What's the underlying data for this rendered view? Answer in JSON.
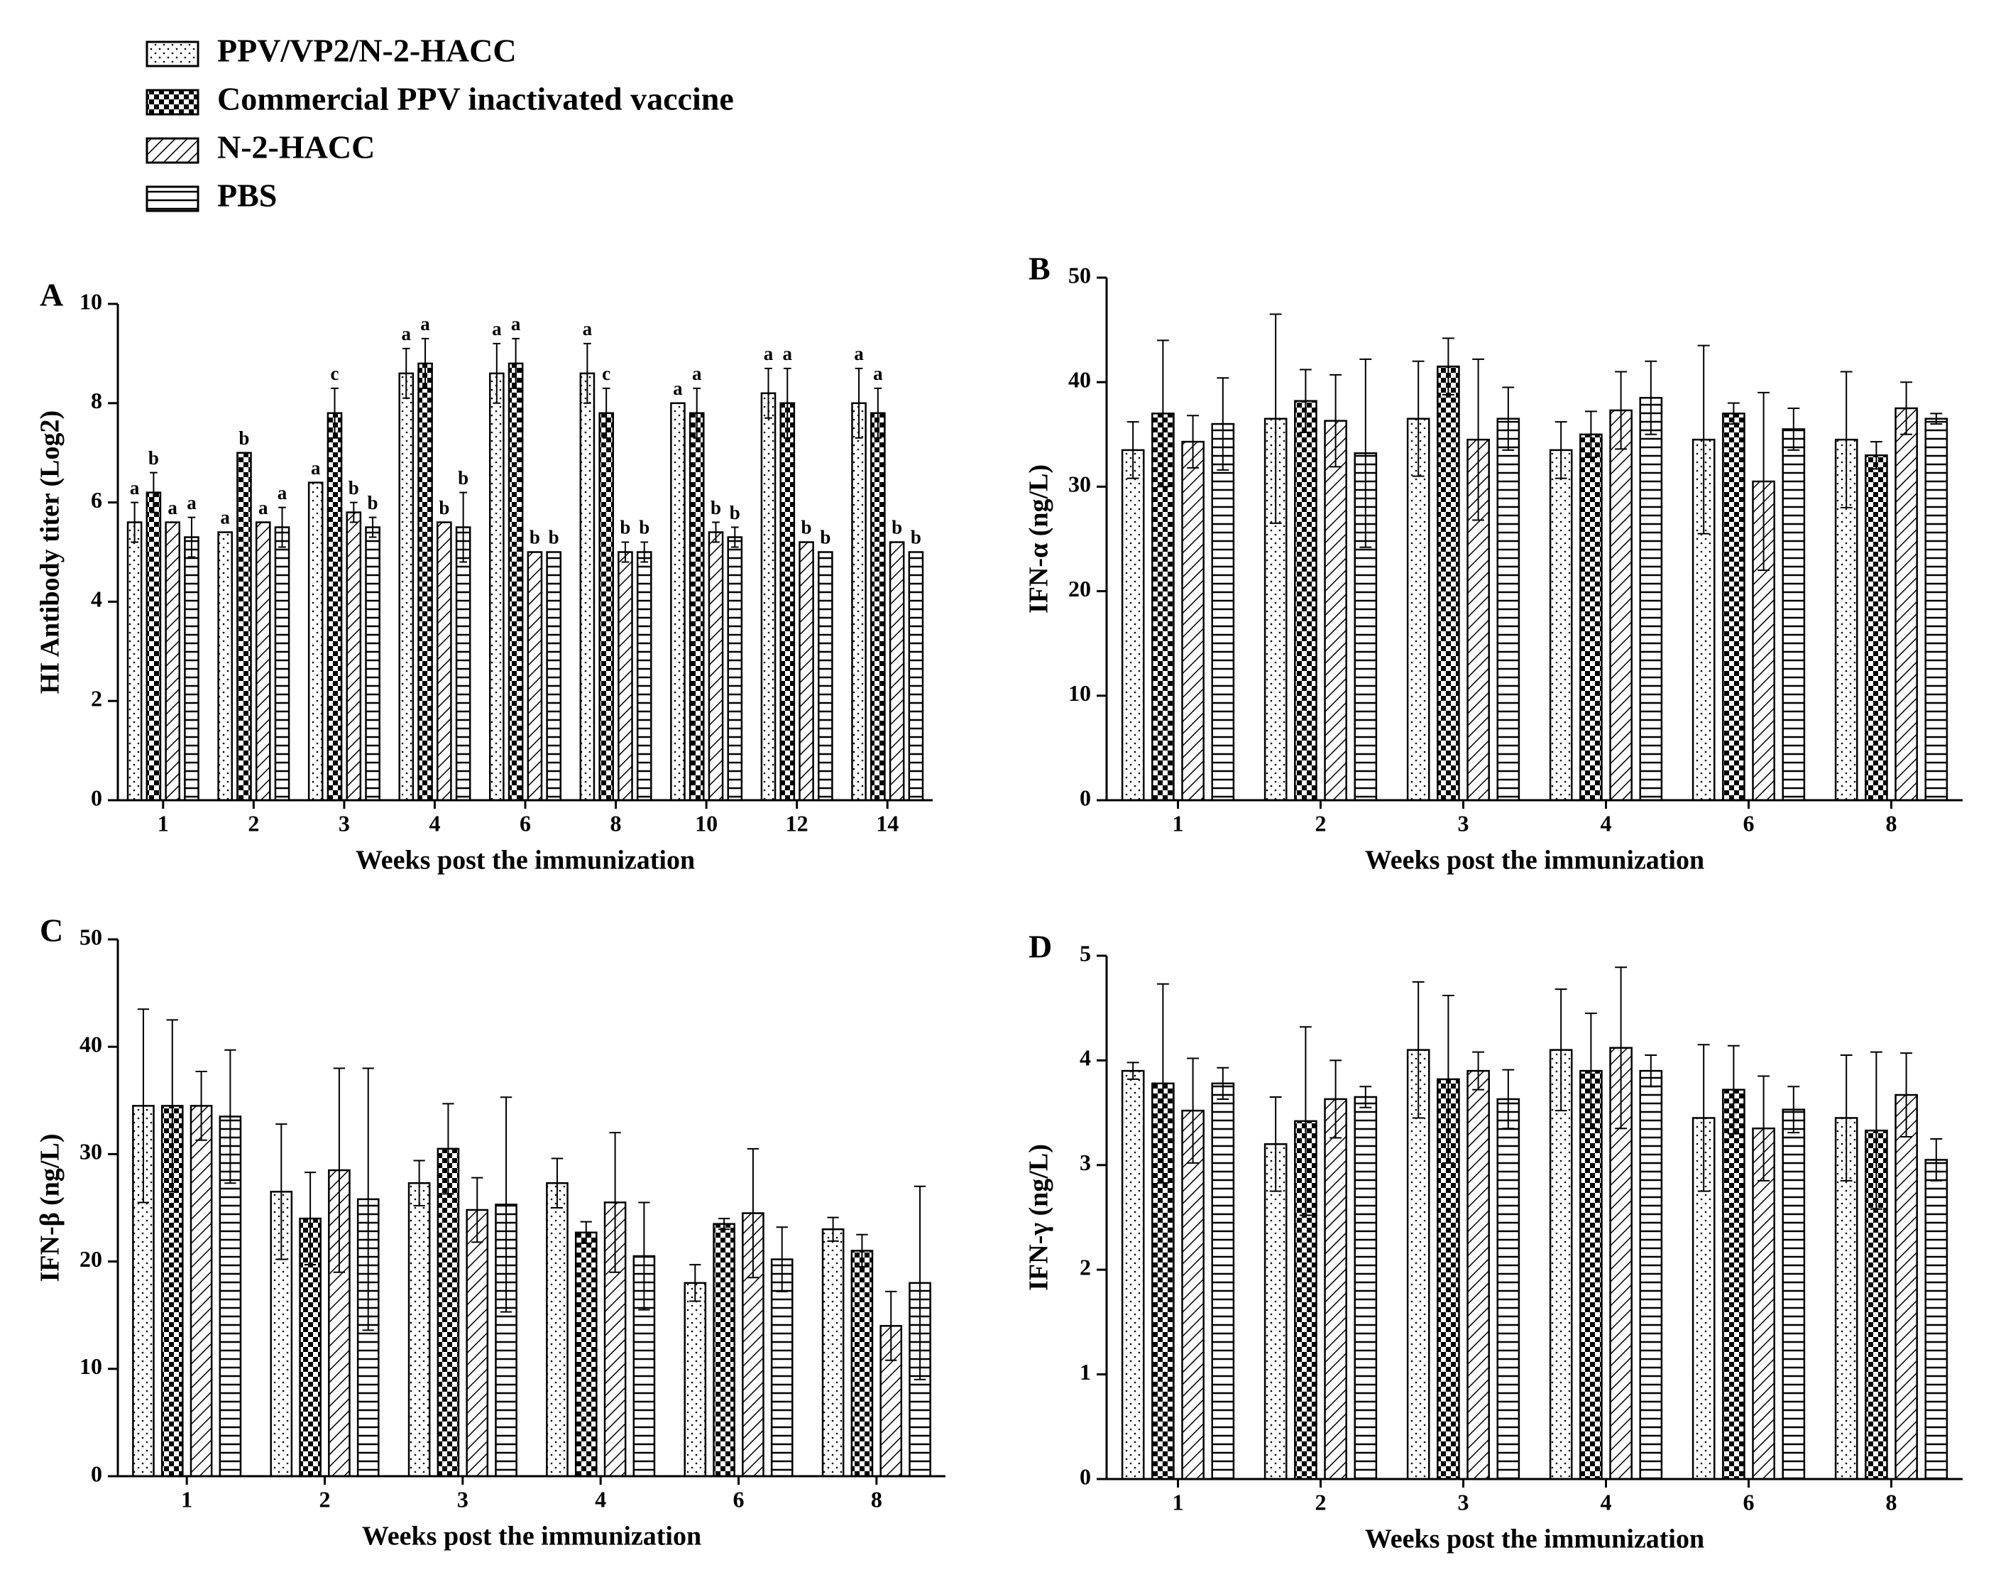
{
  "chart_data": [
    {
      "type": "bar",
      "label": "A",
      "xlabel": "Weeks post the immunization",
      "ylabel": "HI Antibody titer (Log2)",
      "categories": [
        "1",
        "2",
        "3",
        "4",
        "6",
        "8",
        "10",
        "12",
        "14"
      ],
      "ylim": [
        0,
        10
      ],
      "yticks": [
        0,
        2,
        4,
        6,
        8,
        10
      ],
      "series": [
        {
          "name": "PPV/VP2/N-2-HACC",
          "pattern": "dots",
          "color": "#000000",
          "values": [
            5.6,
            5.4,
            6.4,
            8.6,
            8.6,
            8.6,
            8.0,
            8.2,
            8.0
          ],
          "errors": [
            0.4,
            null,
            null,
            0.5,
            0.6,
            0.6,
            null,
            0.5,
            0.7
          ],
          "annotations": [
            "a",
            "a",
            "a",
            "a",
            "a",
            "a",
            "a",
            "a",
            "a"
          ]
        },
        {
          "name": "Commercial PPV inactivated vaccine",
          "pattern": "checker",
          "color": "#000000",
          "values": [
            6.2,
            7.0,
            7.8,
            8.8,
            8.8,
            7.8,
            7.8,
            8.0,
            7.8
          ],
          "errors": [
            0.4,
            null,
            0.5,
            0.5,
            0.5,
            0.5,
            0.5,
            0.7,
            0.5
          ],
          "annotations": [
            "b",
            "b",
            "c",
            "a",
            "a",
            "c",
            "a",
            "a",
            "a"
          ]
        },
        {
          "name": "N-2-HACC",
          "pattern": "diagonal",
          "color": "#000000",
          "values": [
            5.6,
            5.6,
            5.8,
            5.6,
            5.0,
            5.0,
            5.4,
            5.2,
            5.2
          ],
          "errors": [
            null,
            null,
            0.2,
            null,
            null,
            0.2,
            0.2,
            null,
            null
          ],
          "annotations": [
            "a",
            "a",
            "b",
            "b",
            "b",
            "b",
            "b",
            "b",
            "b"
          ]
        },
        {
          "name": "PBS",
          "pattern": "horizontal",
          "color": "#000000",
          "values": [
            5.3,
            5.5,
            5.5,
            5.5,
            5.0,
            5.0,
            5.3,
            5.0,
            5.0
          ],
          "errors": [
            0.4,
            0.4,
            0.2,
            0.7,
            null,
            0.2,
            0.2,
            null,
            null
          ],
          "annotations": [
            "a",
            "a",
            "b",
            "b",
            "b",
            "b",
            "b",
            "b",
            "b"
          ]
        }
      ]
    },
    {
      "type": "bar",
      "label": "B",
      "xlabel": "Weeks post the immunization",
      "ylabel": "IFN-α (ng/L)",
      "categories": [
        "1",
        "2",
        "3",
        "4",
        "6",
        "8"
      ],
      "ylim": [
        0,
        50
      ],
      "yticks": [
        0,
        10,
        20,
        30,
        40,
        50
      ],
      "series": [
        {
          "pattern": "dots",
          "color": "#000000",
          "values": [
            33.5,
            36.5,
            36.5,
            33.5,
            34.5,
            34.5
          ],
          "errors": [
            2.7,
            10,
            5.5,
            2.7,
            9,
            6.5
          ]
        },
        {
          "pattern": "checker",
          "color": "#000000",
          "values": [
            37,
            38.2,
            41.5,
            35,
            37,
            33
          ],
          "errors": [
            7,
            3,
            2.7,
            2.2,
            1,
            1.3
          ]
        },
        {
          "pattern": "diagonal",
          "color": "#000000",
          "values": [
            34.3,
            36.3,
            34.5,
            37.3,
            30.5,
            37.5
          ],
          "errors": [
            2.5,
            4.4,
            7.7,
            3.7,
            8.5,
            2.5
          ]
        },
        {
          "pattern": "horizontal",
          "color": "#000000",
          "values": [
            36,
            33.2,
            36.5,
            38.5,
            35.5,
            36.5
          ],
          "errors": [
            4.4,
            9,
            3,
            3.5,
            2,
            0.5
          ]
        }
      ]
    },
    {
      "type": "bar",
      "label": "C",
      "xlabel": "Weeks post the immunization",
      "ylabel": "IFN-β (ng/L)",
      "categories": [
        "1",
        "2",
        "3",
        "4",
        "6",
        "8"
      ],
      "ylim": [
        0,
        50
      ],
      "yticks": [
        0,
        10,
        20,
        30,
        40,
        50
      ],
      "series": [
        {
          "pattern": "dots",
          "color": "#000000",
          "values": [
            34.5,
            26.5,
            27.3,
            27.3,
            18,
            23
          ],
          "errors": [
            9,
            6.3,
            2.1,
            2.3,
            1.7,
            1.1
          ]
        },
        {
          "pattern": "checker",
          "color": "#000000",
          "values": [
            34.5,
            24,
            30.5,
            22.7,
            23.5,
            21
          ],
          "errors": [
            8,
            4.3,
            4.2,
            1,
            0.5,
            1.5
          ]
        },
        {
          "pattern": "diagonal",
          "color": "#000000",
          "values": [
            34.5,
            28.5,
            24.8,
            25.5,
            24.5,
            14
          ],
          "errors": [
            3.2,
            9.5,
            3,
            6.5,
            6,
            3.2
          ]
        },
        {
          "pattern": "horizontal",
          "color": "#000000",
          "values": [
            33.5,
            25.8,
            25.3,
            20.5,
            20.2,
            18
          ],
          "errors": [
            6.2,
            12.2,
            10,
            5,
            3,
            9
          ]
        }
      ]
    },
    {
      "type": "bar",
      "label": "D",
      "xlabel": "Weeks post the immunization",
      "ylabel": "IFN-γ (ng/L)",
      "categories": [
        "1",
        "2",
        "3",
        "4",
        "6",
        "8"
      ],
      "ylim": [
        0,
        5
      ],
      "yticks": [
        0,
        1,
        2,
        3,
        4,
        5
      ],
      "series": [
        {
          "pattern": "dots",
          "color": "#000000",
          "values": [
            3.9,
            3.2,
            4.1,
            4.1,
            3.45,
            3.45
          ],
          "errors": [
            0.08,
            0.45,
            0.65,
            0.58,
            0.7,
            0.6
          ]
        },
        {
          "pattern": "checker",
          "color": "#000000",
          "values": [
            3.78,
            3.42,
            3.82,
            3.9,
            3.72,
            3.33
          ],
          "errors": [
            0.95,
            0.9,
            0.8,
            0.55,
            0.42,
            0.75
          ]
        },
        {
          "pattern": "diagonal",
          "color": "#000000",
          "values": [
            3.52,
            3.63,
            3.9,
            4.12,
            3.35,
            3.67
          ],
          "errors": [
            0.5,
            0.37,
            0.18,
            0.77,
            0.5,
            0.4
          ]
        },
        {
          "pattern": "horizontal",
          "color": "#000000",
          "values": [
            3.78,
            3.65,
            3.63,
            3.9,
            3.53,
            3.05
          ],
          "errors": [
            0.15,
            0.1,
            0.28,
            0.15,
            0.22,
            0.2
          ]
        }
      ]
    }
  ]
}
